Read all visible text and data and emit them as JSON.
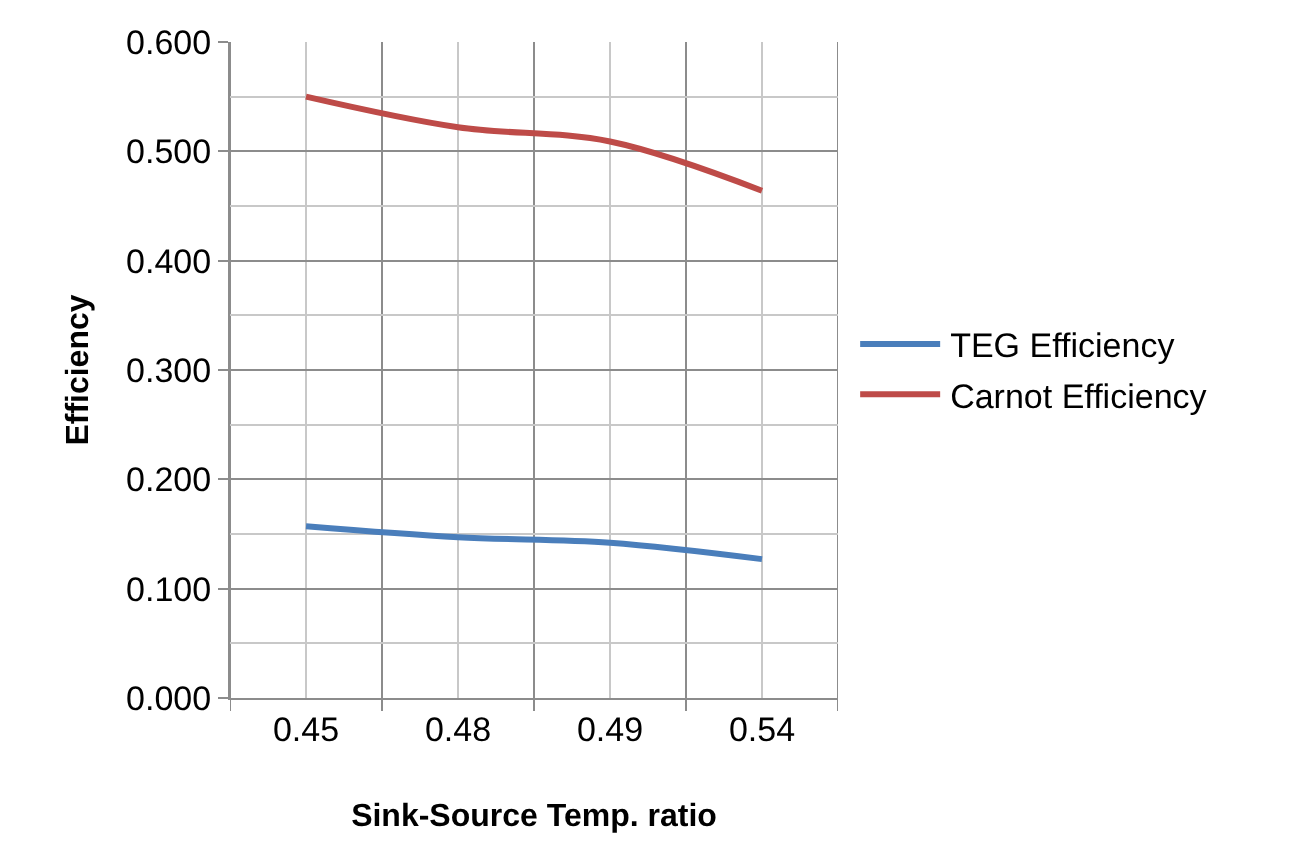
{
  "chart_data": {
    "type": "line",
    "xlabel": "Sink-Source Temp. ratio",
    "ylabel": "Efficiency",
    "categories": [
      "0.45",
      "0.48",
      "0.49",
      "0.54"
    ],
    "series": [
      {
        "name": "TEG Efficiency",
        "color": "#4a7ebb",
        "values": [
          0.157,
          0.147,
          0.142,
          0.127
        ]
      },
      {
        "name": "Carnot Efficiency",
        "color": "#be4b48",
        "values": [
          0.55,
          0.522,
          0.509,
          0.464
        ]
      }
    ],
    "ylim": [
      0,
      0.6
    ],
    "yticks": [
      {
        "value": 0,
        "label": "0.000"
      },
      {
        "value": 0.1,
        "label": "0.100"
      },
      {
        "value": 0.2,
        "label": "0.200"
      },
      {
        "value": 0.3,
        "label": "0.300"
      },
      {
        "value": 0.4,
        "label": "0.400"
      },
      {
        "value": 0.5,
        "label": "0.500"
      },
      {
        "value": 0.6,
        "label": "0.600"
      }
    ],
    "grid": true,
    "legend": "right",
    "marker": "none",
    "line_style": "solid"
  }
}
